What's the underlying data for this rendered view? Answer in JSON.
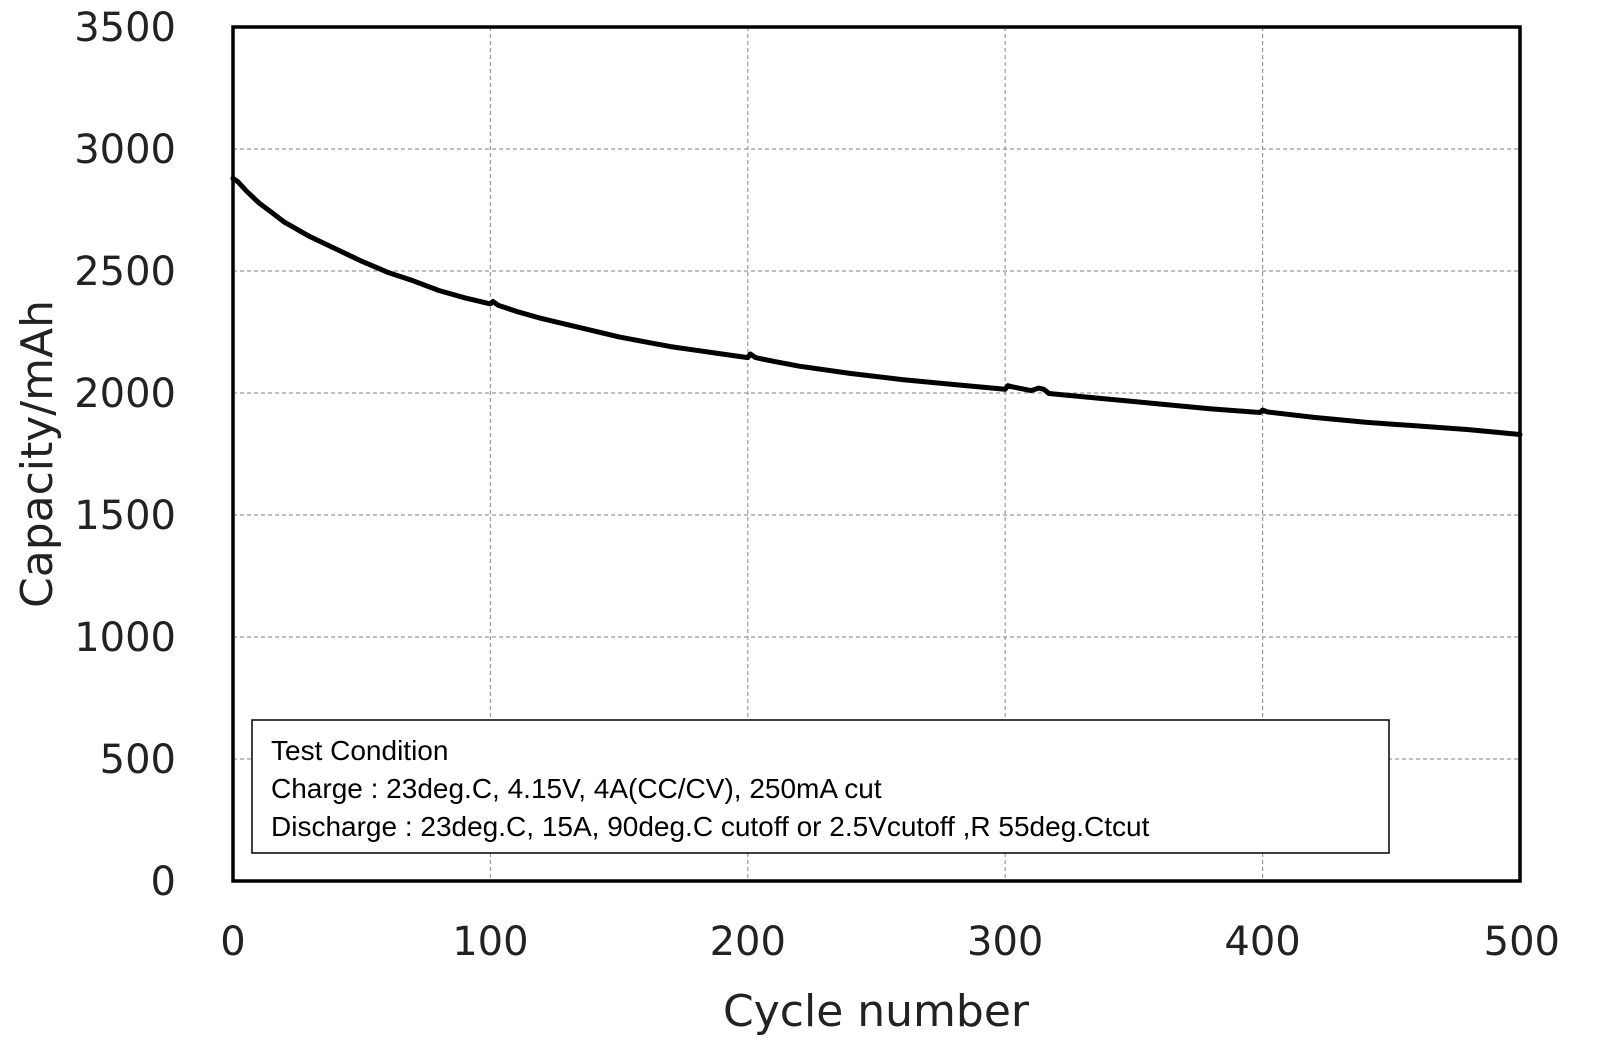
{
  "chart_data": {
    "type": "line",
    "title": "",
    "xlabel": "Cycle number",
    "ylabel": "Capacity/mAh",
    "xlim": [
      0,
      500
    ],
    "ylim": [
      0,
      3500
    ],
    "xticks": [
      0,
      100,
      200,
      300,
      400,
      500
    ],
    "yticks": [
      0,
      500,
      1000,
      1500,
      2000,
      2500,
      3000,
      3500
    ],
    "grid": true,
    "series": [
      {
        "color": "#000000",
        "x": [
          0,
          2,
          5,
          10,
          15,
          20,
          30,
          40,
          50,
          60,
          70,
          80,
          90,
          100,
          101,
          103,
          110,
          120,
          130,
          140,
          150,
          160,
          170,
          180,
          190,
          200,
          201,
          203,
          210,
          220,
          240,
          260,
          280,
          300,
          301,
          303,
          310,
          313,
          315,
          317,
          320,
          340,
          360,
          380,
          399,
          400,
          402,
          420,
          440,
          460,
          480,
          500
        ],
        "y": [
          2880,
          2865,
          2830,
          2780,
          2740,
          2700,
          2640,
          2590,
          2540,
          2495,
          2460,
          2420,
          2390,
          2365,
          2375,
          2360,
          2335,
          2305,
          2280,
          2255,
          2230,
          2210,
          2190,
          2175,
          2160,
          2145,
          2160,
          2145,
          2130,
          2110,
          2080,
          2055,
          2035,
          2015,
          2030,
          2025,
          2010,
          2020,
          2015,
          1998,
          1995,
          1975,
          1955,
          1935,
          1920,
          1930,
          1922,
          1900,
          1880,
          1865,
          1850,
          1830
        ]
      }
    ],
    "annotations": [
      "Test Condition",
      "Charge : 23deg.C, 4.15V, 4A(CC/CV), 250mA cut",
      "Discharge : 23deg.C, 15A, 90deg.C cutoff or 2.5Vcutoff ,R 55deg.Ctcut"
    ]
  }
}
